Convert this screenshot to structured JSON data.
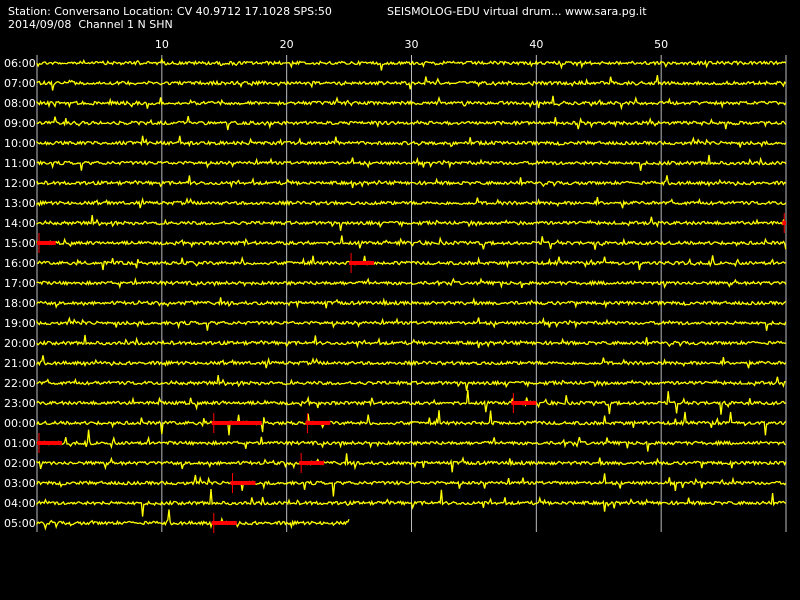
{
  "header": {
    "station_line": "Station: Conversano Location: CV 40.9712 17.1028 SPS:50",
    "title_line": "SEISMOLOG-EDU virtual drum... www.sara.pg.it",
    "date_line": "2014/09/08  Channel 1 N SHN"
  },
  "chart_data": {
    "type": "line",
    "title": "SEISMOLOG-EDU virtual drum... www.sara.pg.it",
    "x_ticks": [
      "10",
      "20",
      "30",
      "40",
      "50"
    ],
    "x_tick_values": [
      10,
      20,
      30,
      40,
      50
    ],
    "x_range": [
      0,
      60
    ],
    "y_labels": [
      "06:00",
      "07:00",
      "08:00",
      "09:00",
      "10:00",
      "11:00",
      "12:00",
      "13:00",
      "14:00",
      "15:00",
      "16:00",
      "17:00",
      "18:00",
      "19:00",
      "20:00",
      "21:00",
      "22:00",
      "23:00",
      "00:00",
      "01:00",
      "02:00",
      "03:00",
      "04:00",
      "05:00"
    ],
    "last_row_end_minute": 25,
    "grid": "vertical lines every 10 minutes",
    "trace_color": "#ffff00",
    "event_color": "#ff0000",
    "background": "#000000",
    "event_segments": [
      {
        "row": "14:00",
        "start_min": 59.7,
        "end_min": 60
      },
      {
        "row": "15:00",
        "start_min": 0,
        "end_min": 1.5
      },
      {
        "row": "16:00",
        "start_min": 25,
        "end_min": 27
      },
      {
        "row": "23:00",
        "start_min": 38,
        "end_min": 40
      },
      {
        "row": "00:00",
        "start_min": 14,
        "end_min": 18
      },
      {
        "row": "00:00",
        "start_min": 21.5,
        "end_min": 23.5
      },
      {
        "row": "01:00",
        "start_min": 0,
        "end_min": 2
      },
      {
        "row": "02:00",
        "start_min": 21,
        "end_min": 23
      },
      {
        "row": "03:00",
        "start_min": 15.5,
        "end_min": 17.5
      },
      {
        "row": "05:00",
        "start_min": 14,
        "end_min": 16
      }
    ]
  }
}
